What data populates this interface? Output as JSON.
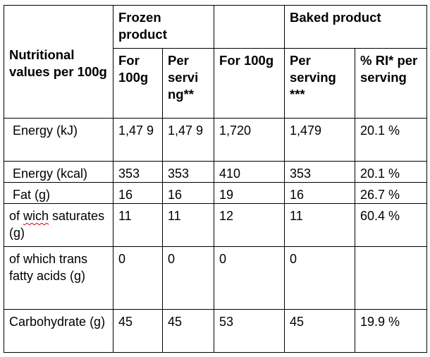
{
  "headers": {
    "row_header": "Nutritional values per 100g",
    "frozen_group": "Frozen product",
    "baked_group": "Baked product",
    "columns": [
      "For 100g",
      "Per servi ng**",
      "For 100g",
      "Per serving ***",
      "% RI* per serving"
    ]
  },
  "rows": [
    {
      "label": "Energy (kJ)",
      "values": [
        "1,47 9",
        "1,47 9",
        "1,720",
        "1,479",
        "20.1 %"
      ]
    },
    {
      "label": "Energy (kcal)",
      "values": [
        "353",
        "353",
        "410",
        "353",
        "20.1 %"
      ]
    },
    {
      "label": "Fat (g)",
      "values": [
        "16",
        "16",
        "19",
        "16",
        "26.7 %"
      ]
    },
    {
      "label_misspelled": "wich",
      "label_prefix": "of ",
      "label_suffix": " saturates (g)",
      "values": [
        "11",
        "11",
        "12",
        "11",
        "60.4 %"
      ]
    },
    {
      "label": "of which trans fatty acids (g)",
      "values": [
        "0",
        "0",
        "0",
        "0",
        ""
      ]
    },
    {
      "label": "Carbohydrate (g)",
      "values": [
        "45",
        "45",
        "53",
        "45",
        "19.9 %"
      ]
    }
  ]
}
